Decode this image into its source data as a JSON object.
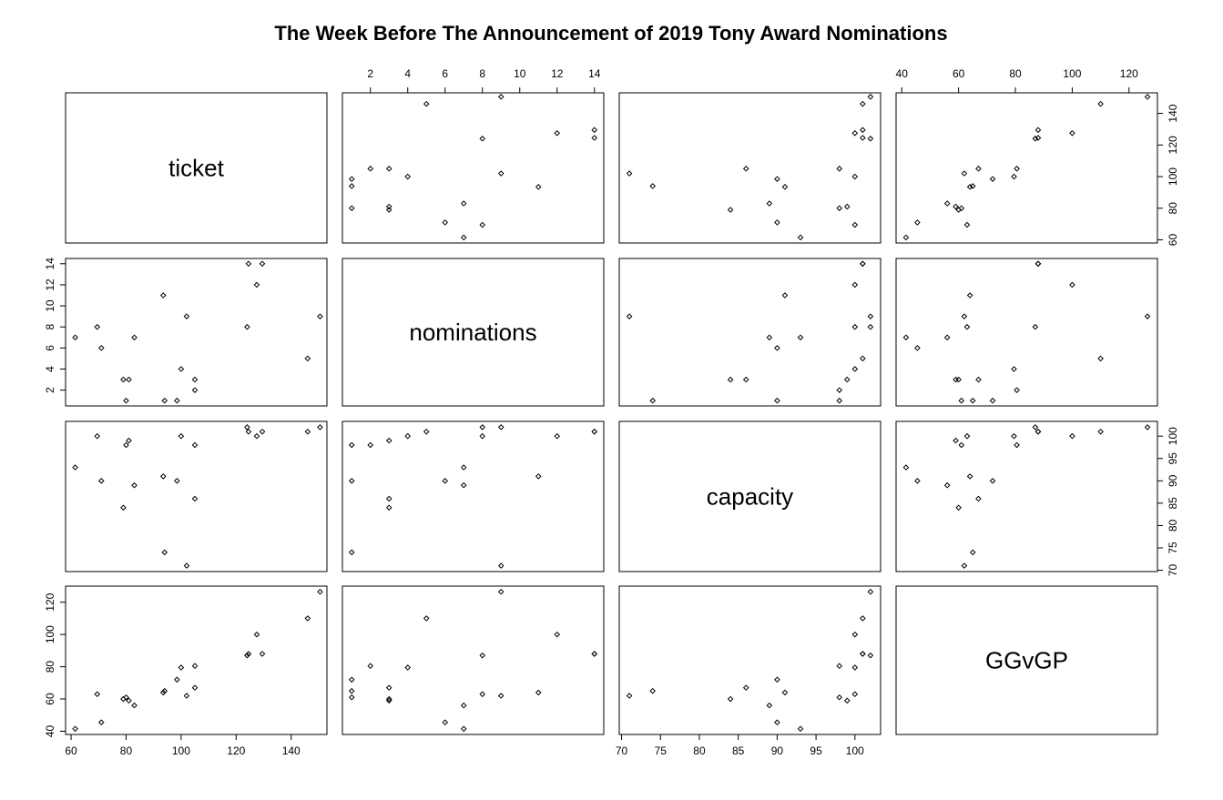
{
  "chart_data": {
    "type": "scatter",
    "title": "The Week Before The Announcement of 2019 Tony Award Nominations",
    "variables": [
      "ticket",
      "nominations",
      "capacity",
      "GGvGP"
    ],
    "observations": [
      {
        "ticket": 61.5,
        "nominations": 7,
        "capacity": 93,
        "GGvGP": 41.5
      },
      {
        "ticket": 69.5,
        "nominations": 8,
        "capacity": 100,
        "GGvGP": 63
      },
      {
        "ticket": 71.0,
        "nominations": 6,
        "capacity": 90,
        "GGvGP": 45.5
      },
      {
        "ticket": 79.0,
        "nominations": 3,
        "capacity": 84,
        "GGvGP": 60
      },
      {
        "ticket": 80.0,
        "nominations": 1,
        "capacity": 98,
        "GGvGP": 61
      },
      {
        "ticket": 81.0,
        "nominations": 3,
        "capacity": 99,
        "GGvGP": 59
      },
      {
        "ticket": 83.0,
        "nominations": 7,
        "capacity": 89,
        "GGvGP": 56
      },
      {
        "ticket": 93.5,
        "nominations": 11,
        "capacity": 91,
        "GGvGP": 64
      },
      {
        "ticket": 94.0,
        "nominations": 1,
        "capacity": 74,
        "GGvGP": 65
      },
      {
        "ticket": 98.5,
        "nominations": 1,
        "capacity": 90,
        "GGvGP": 72
      },
      {
        "ticket": 100.0,
        "nominations": 4,
        "capacity": 100,
        "GGvGP": 79.5
      },
      {
        "ticket": 102.0,
        "nominations": 9,
        "capacity": 71,
        "GGvGP": 62
      },
      {
        "ticket": 105.0,
        "nominations": 3,
        "capacity": 86,
        "GGvGP": 67
      },
      {
        "ticket": 105.0,
        "nominations": 2,
        "capacity": 98,
        "GGvGP": 80.5
      },
      {
        "ticket": 124.0,
        "nominations": 8,
        "capacity": 102,
        "GGvGP": 87
      },
      {
        "ticket": 124.5,
        "nominations": 14,
        "capacity": 101,
        "GGvGP": 88
      },
      {
        "ticket": 127.5,
        "nominations": 12,
        "capacity": 100,
        "GGvGP": 100
      },
      {
        "ticket": 129.5,
        "nominations": 14,
        "capacity": 101,
        "GGvGP": 88
      },
      {
        "ticket": 146.0,
        "nominations": 5,
        "capacity": 101,
        "GGvGP": 110
      },
      {
        "ticket": 150.5,
        "nominations": 9,
        "capacity": 102,
        "GGvGP": 126.5
      }
    ],
    "axes": {
      "ticket": {
        "range": [
          58,
          153
        ],
        "ticks": [
          60,
          80,
          100,
          120,
          140
        ]
      },
      "nominations": {
        "range": [
          0.5,
          14.5
        ],
        "ticks": [
          2,
          4,
          6,
          8,
          10,
          12,
          14
        ]
      },
      "capacity": {
        "range": [
          69.7,
          103.3
        ],
        "ticks": [
          70,
          75,
          80,
          85,
          90,
          95,
          100
        ]
      },
      "GGvGP": {
        "range": [
          38,
          130
        ],
        "ticks": [
          40,
          60,
          80,
          100,
          120
        ]
      }
    },
    "grid": false,
    "legend": "none"
  }
}
